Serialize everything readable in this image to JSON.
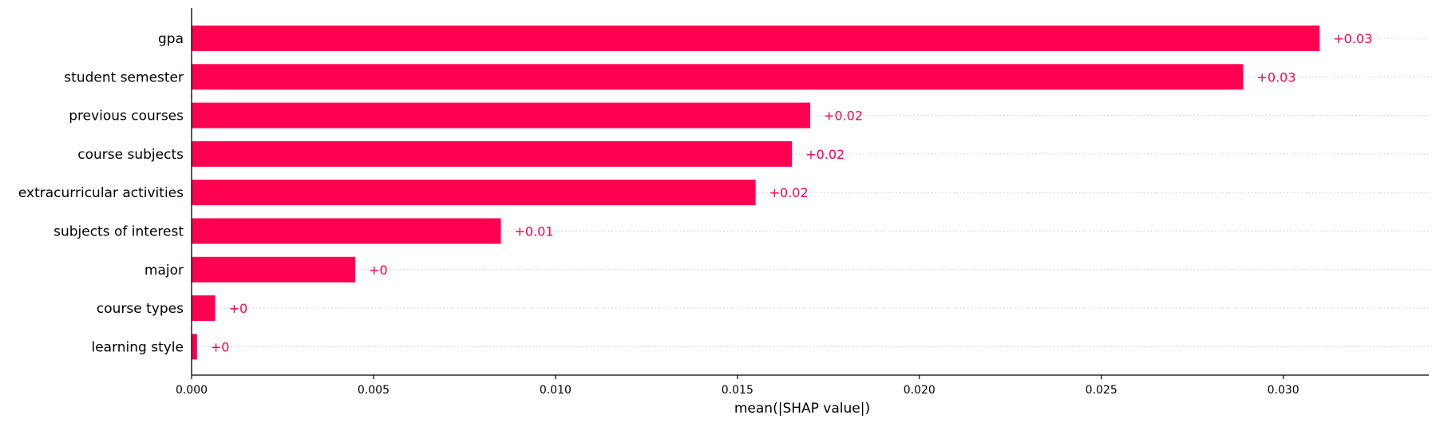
{
  "chart_data": {
    "type": "bar",
    "orientation": "horizontal",
    "categories": [
      "gpa",
      "student semester",
      "previous courses",
      "course subjects",
      "extracurricular activities",
      "subjects of interest",
      "major",
      "course types",
      "learning style"
    ],
    "values": [
      0.031,
      0.0289,
      0.017,
      0.0165,
      0.0155,
      0.0085,
      0.0045,
      0.00065,
      0.00015
    ],
    "value_labels": [
      "+0.03",
      "+0.03",
      "+0.02",
      "+0.02",
      "+0.02",
      "+0.01",
      "+0",
      "+0",
      "+0"
    ],
    "xticks": [
      0.0,
      0.005,
      0.01,
      0.015,
      0.02,
      0.025,
      0.03
    ],
    "xtick_labels": [
      "0.000",
      "0.005",
      "0.010",
      "0.015",
      "0.020",
      "0.025",
      "0.030"
    ],
    "xlim": [
      0,
      0.034
    ],
    "title": "",
    "xlabel": "mean(|SHAP value|)",
    "ylabel": "",
    "grid": "dotted horizontal guide lines per bar",
    "colors": {
      "bar": "#ff0051",
      "value_label": "#ff0051",
      "axis": "#000000",
      "guide": "#cccccc"
    }
  }
}
